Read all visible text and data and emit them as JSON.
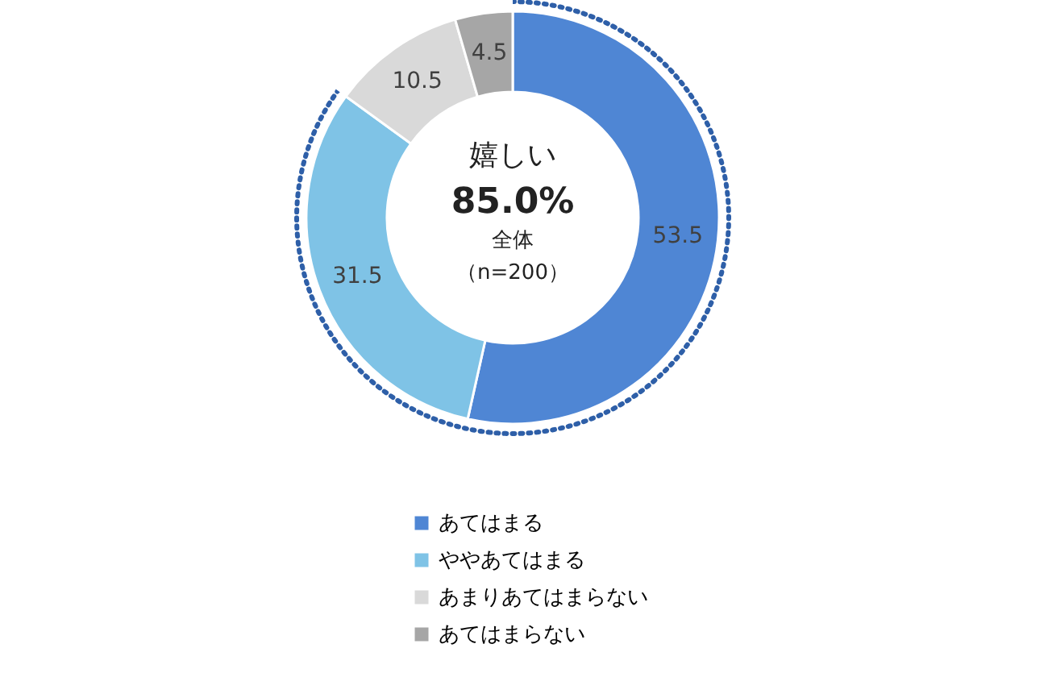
{
  "chart_data": {
    "type": "donut",
    "title": "嬉しい",
    "annotations": [
      "85.0%",
      "全体",
      "（n=200）"
    ],
    "categories": [
      "あてはまる",
      "ややあてはまる",
      "あまりあてはまらない",
      "あてはまらない"
    ],
    "values": [
      53.5,
      31.5,
      10.5,
      4.5
    ],
    "colors": [
      "#4f86d4",
      "#7fc3e6",
      "#d9d9d9",
      "#a6a6a6"
    ],
    "data_labels": true,
    "legend": "bottom"
  }
}
